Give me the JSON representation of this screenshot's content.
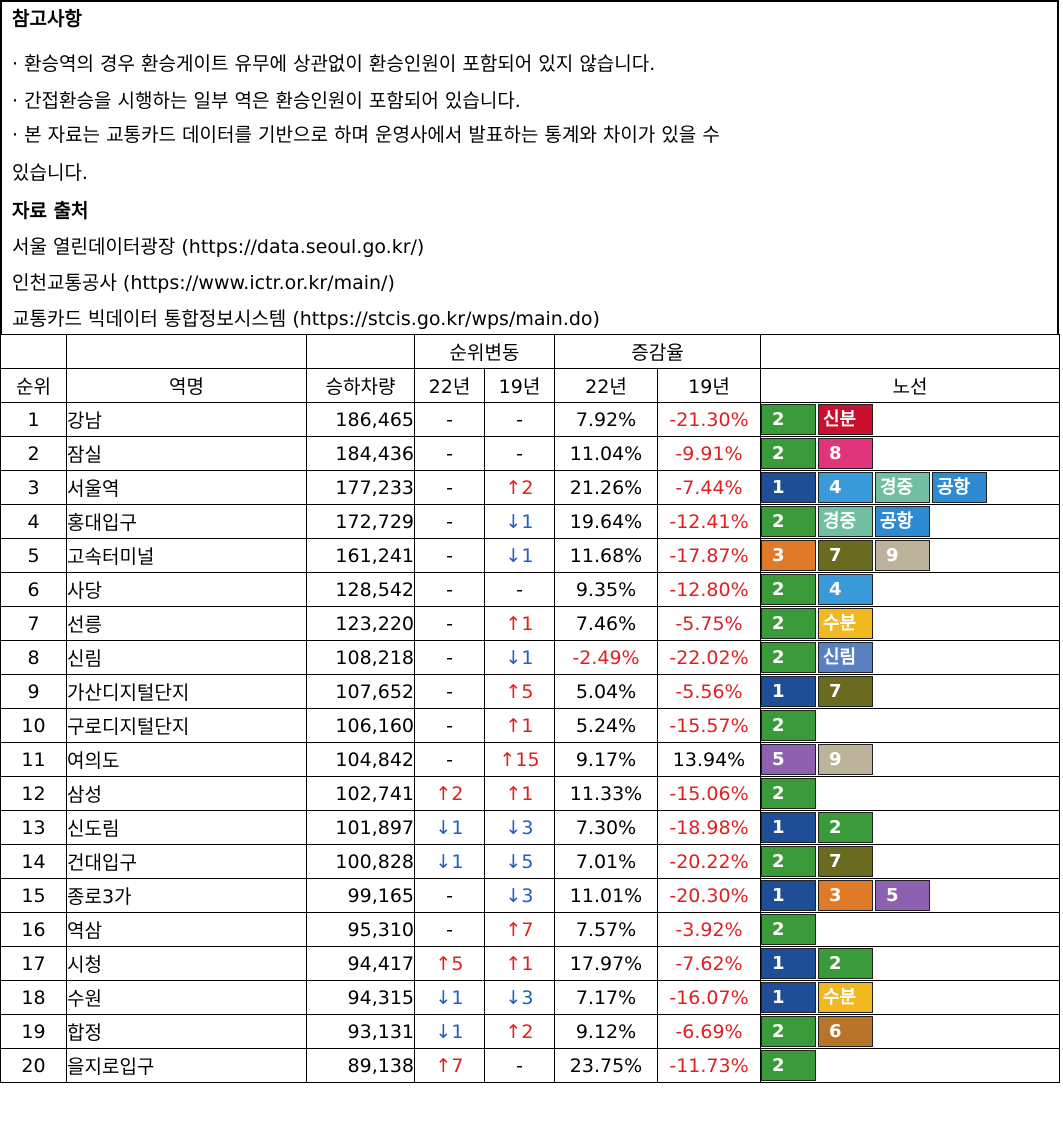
{
  "notes": {
    "title": "참고사항",
    "lines": [
      "· 환승역의 경우 환승게이트 유무에 상관없이 환승인원이 포함되어 있지 않습니다.",
      " · 간접환승을 시행하는 일부 역은 환승인원이 포함되어 있습니다.",
      "· 본 자료는 교통카드 데이터를 기반으로 하며 운영사에서 발표하는 통계와 차이가 있을 수",
      " 있습니다."
    ],
    "source_title": "자료 출처",
    "sources": [
      "서울 열린데이터광장 (https://data.seoul.go.kr/)",
      "인천교통공사 (https://www.ictr.or.kr/main/)",
      "교통카드 빅데이터 통합정보시스템 (https://stcis.go.kr/wps/main.do)"
    ]
  },
  "header": {
    "rank_change": "순위변동",
    "growth": "증감율",
    "rank": "순위",
    "station": "역명",
    "volume": "승하차량",
    "y22": "22년",
    "y19": "19년",
    "y22b": "22년",
    "y19b": "19년",
    "lines": "노선"
  },
  "line_colors": {
    "1": "#1f4e96",
    "2": "#3a9a3a",
    "3": "#e07a28",
    "4": "#3a9ad9",
    "5": "#8e60b0",
    "6": "#b8752a",
    "7": "#6b6b1f",
    "8": "#e0357a",
    "9": "#bdb39b",
    "신분": "#c8102e",
    "경중": "#6fbfa0",
    "공항": "#2f8ad4",
    "수분": "#f2b81f",
    "신림": "#5a80c2"
  },
  "rows": [
    {
      "rank": "1",
      "name": "강남",
      "volume": "186,465",
      "r22": "-",
      "r19": "-",
      "g22": "7.92%",
      "g19": "-21.30%",
      "lines": [
        "2",
        "신분"
      ]
    },
    {
      "rank": "2",
      "name": "잠실",
      "volume": "184,436",
      "r22": "-",
      "r19": "-",
      "g22": "11.04%",
      "g19": "-9.91%",
      "lines": [
        "2",
        "8"
      ]
    },
    {
      "rank": "3",
      "name": "서울역",
      "volume": "177,233",
      "r22": "-",
      "r19": "↑2",
      "g22": "21.26%",
      "g19": "-7.44%",
      "lines": [
        "1",
        "4",
        "경중",
        "공항"
      ]
    },
    {
      "rank": "4",
      "name": "홍대입구",
      "volume": "172,729",
      "r22": "-",
      "r19": "↓1",
      "g22": "19.64%",
      "g19": "-12.41%",
      "lines": [
        "2",
        "경중",
        "공항"
      ]
    },
    {
      "rank": "5",
      "name": "고속터미널",
      "volume": "161,241",
      "r22": "-",
      "r19": "↓1",
      "g22": "11.68%",
      "g19": "-17.87%",
      "lines": [
        "3",
        "7",
        "9"
      ]
    },
    {
      "rank": "6",
      "name": "사당",
      "volume": "128,542",
      "r22": "-",
      "r19": "-",
      "g22": "9.35%",
      "g19": "-12.80%",
      "lines": [
        "2",
        "4"
      ]
    },
    {
      "rank": "7",
      "name": "선릉",
      "volume": "123,220",
      "r22": "-",
      "r19": "↑1",
      "g22": "7.46%",
      "g19": "-5.75%",
      "lines": [
        "2",
        "수분"
      ]
    },
    {
      "rank": "8",
      "name": "신림",
      "volume": "108,218",
      "r22": "-",
      "r19": "↓1",
      "g22": "-2.49%",
      "g19": "-22.02%",
      "lines": [
        "2",
        "신림"
      ]
    },
    {
      "rank": "9",
      "name": "가산디지털단지",
      "volume": "107,652",
      "r22": "-",
      "r19": "↑5",
      "g22": "5.04%",
      "g19": "-5.56%",
      "lines": [
        "1",
        "7"
      ]
    },
    {
      "rank": "10",
      "name": "구로디지털단지",
      "volume": "106,160",
      "r22": "-",
      "r19": "↑1",
      "g22": "5.24%",
      "g19": "-15.57%",
      "lines": [
        "2"
      ]
    },
    {
      "rank": "11",
      "name": "여의도",
      "volume": "104,842",
      "r22": "-",
      "r19": "↑15",
      "g22": "9.17%",
      "g19": "13.94%",
      "lines": [
        "5",
        "9"
      ]
    },
    {
      "rank": "12",
      "name": "삼성",
      "volume": "102,741",
      "r22": "↑2",
      "r19": "↑1",
      "g22": "11.33%",
      "g19": "-15.06%",
      "lines": [
        "2"
      ]
    },
    {
      "rank": "13",
      "name": "신도림",
      "volume": "101,897",
      "r22": "↓1",
      "r19": "↓3",
      "g22": "7.30%",
      "g19": "-18.98%",
      "lines": [
        "1",
        "2"
      ]
    },
    {
      "rank": "14",
      "name": "건대입구",
      "volume": "100,828",
      "r22": "↓1",
      "r19": "↓5",
      "g22": "7.01%",
      "g19": "-20.22%",
      "lines": [
        "2",
        "7"
      ]
    },
    {
      "rank": "15",
      "name": "종로3가",
      "volume": "99,165",
      "r22": "-",
      "r19": "↓3",
      "g22": "11.01%",
      "g19": "-20.30%",
      "lines": [
        "1",
        "3",
        "5"
      ]
    },
    {
      "rank": "16",
      "name": "역삼",
      "volume": "95,310",
      "r22": "-",
      "r19": "↑7",
      "g22": "7.57%",
      "g19": "-3.92%",
      "lines": [
        "2"
      ]
    },
    {
      "rank": "17",
      "name": "시청",
      "volume": "94,417",
      "r22": "↑5",
      "r19": "↑1",
      "g22": "17.97%",
      "g19": "-7.62%",
      "lines": [
        "1",
        "2"
      ]
    },
    {
      "rank": "18",
      "name": "수원",
      "volume": "94,315",
      "r22": "↓1",
      "r19": "↓3",
      "g22": "7.17%",
      "g19": "-16.07%",
      "lines": [
        "1",
        "수분"
      ]
    },
    {
      "rank": "19",
      "name": "합정",
      "volume": "93,131",
      "r22": "↓1",
      "r19": "↑2",
      "g22": "9.12%",
      "g19": "-6.69%",
      "lines": [
        "2",
        "6"
      ]
    },
    {
      "rank": "20",
      "name": "을지로입구",
      "volume": "89,138",
      "r22": "↑7",
      "r19": "-",
      "g22": "23.75%",
      "g19": "-11.73%",
      "lines": [
        "2"
      ]
    }
  ]
}
